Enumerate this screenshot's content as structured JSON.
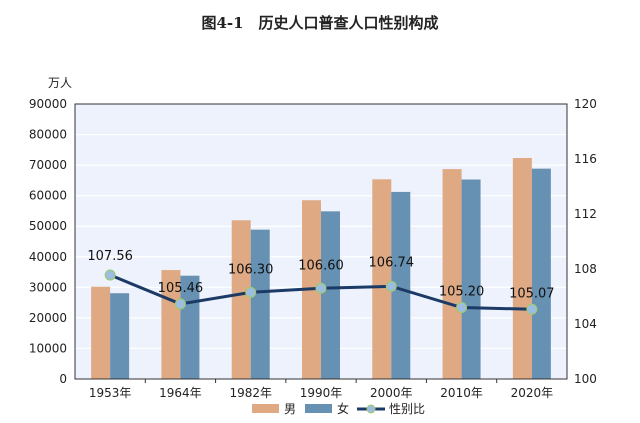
{
  "chart_data": {
    "type": "bar",
    "title": "图4-1　历史人口普查人口性别构成",
    "ylabel": "万人",
    "categories": [
      "1953年",
      "1964年",
      "1982年",
      "1990年",
      "2000年",
      "2010年",
      "2020年"
    ],
    "series": [
      {
        "name": "男",
        "type": "bar",
        "axis": "left",
        "color": "#dea983",
        "values": [
          30190,
          35652,
          51944,
          58495,
          65355,
          68685,
          72334
        ]
      },
      {
        "name": "女",
        "type": "bar",
        "axis": "left",
        "color": "#6691b3",
        "values": [
          28070,
          33806,
          48874,
          54873,
          61228,
          65287,
          68844
        ]
      },
      {
        "name": "性别比",
        "type": "line",
        "axis": "right",
        "color": "#1c3a66",
        "marker_color": "#9dbde0",
        "values": [
          107.56,
          105.46,
          106.3,
          106.6,
          106.74,
          105.2,
          105.07
        ],
        "labels": [
          "107.56",
          "105.46",
          "106.30",
          "106.60",
          "106.74",
          "105.20",
          "105.07"
        ]
      }
    ],
    "ylim": [
      0,
      90000
    ],
    "yticks": [
      "0",
      "10000",
      "20000",
      "30000",
      "40000",
      "50000",
      "60000",
      "70000",
      "80000",
      "90000"
    ],
    "y2lim": [
      100,
      120
    ],
    "y2ticks": [
      "100",
      "104",
      "108",
      "112",
      "116",
      "120"
    ],
    "grid": true,
    "legend": "bottom",
    "background": "#eef2fc"
  }
}
